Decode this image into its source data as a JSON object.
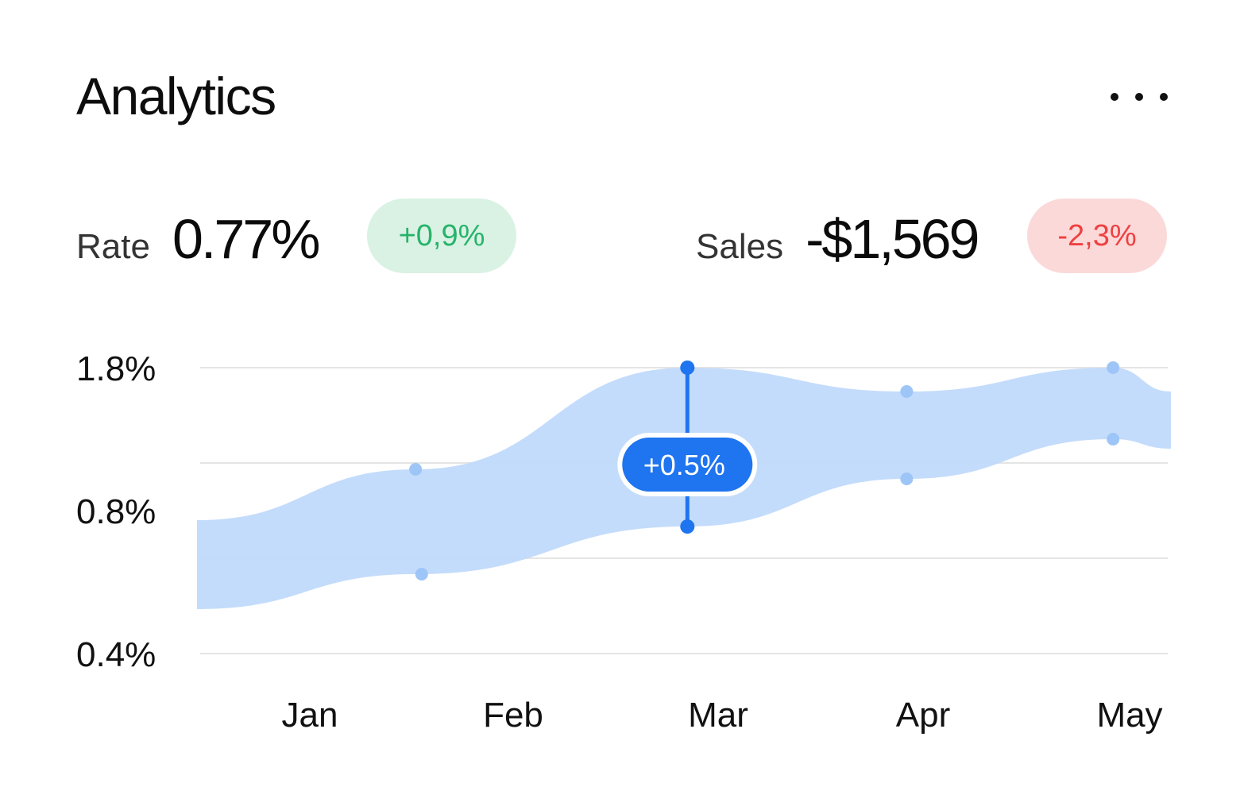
{
  "header": {
    "title": "Analytics",
    "menu_icon": "more-horizontal-icon"
  },
  "stats": {
    "rate": {
      "label": "Rate",
      "value": "0.77%",
      "change": "+0,9%"
    },
    "sales": {
      "label": "Sales",
      "value": "-$1,569",
      "change": "-2,3%"
    }
  },
  "colors": {
    "band": "#c1dafb",
    "point": "#9ec5f7",
    "accent": "#1f74ef",
    "positive_bg": "#d9f2e4",
    "positive_fg": "#27b36a",
    "negative_bg": "#fbd9d9",
    "negative_fg": "#ef4040",
    "grid": "#e4e4e4"
  },
  "chart_data": {
    "type": "area",
    "title": "",
    "xlabel": "",
    "ylabel": "",
    "categories": [
      "Jan",
      "Feb",
      "Mar",
      "Apr",
      "May"
    ],
    "y_ticks": [
      "1.8%",
      "0.8%",
      "0.4%"
    ],
    "grid": true,
    "series": [
      {
        "upper": [
          0.78,
          1.8,
          1.55,
          1.8,
          1.55
        ],
        "lower": [
          0.45,
          0.6,
          0.75,
          1.05,
          0.95
        ]
      }
    ],
    "points": [
      {
        "x": 0.52,
        "y": 0.78
      },
      {
        "x": 0.55,
        "y": 0.45
      },
      {
        "x": 1.85,
        "y": 1.8
      },
      {
        "x": 1.85,
        "y": 0.6
      },
      {
        "x": 2.92,
        "y": 1.55
      },
      {
        "x": 2.92,
        "y": 0.75
      },
      {
        "x": 3.92,
        "y": 1.8
      },
      {
        "x": 3.92,
        "y": 1.05
      }
    ],
    "highlight": {
      "x": 1.85,
      "label": "+0.5%"
    }
  }
}
